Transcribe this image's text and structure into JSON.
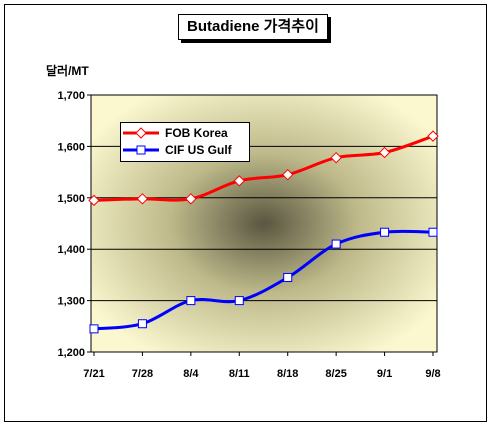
{
  "chart_data": {
    "type": "line",
    "title": "Butadiene 가격추이",
    "ylabel": "달러/MT",
    "xlabel": "",
    "categories": [
      "7/21",
      "7/28",
      "8/4",
      "8/11",
      "8/18",
      "8/25",
      "9/1",
      "9/8"
    ],
    "ylim": [
      1200,
      1700
    ],
    "yticks": [
      "1,200",
      "1,300",
      "1,400",
      "1,500",
      "1,600",
      "1,700"
    ],
    "grid": true,
    "legend_position": "top-left",
    "series": [
      {
        "name": "FOB Korea",
        "color": "#ff0000",
        "marker": "diamond",
        "values": [
          1495,
          1498,
          1498,
          1533,
          1545,
          1578,
          1588,
          1620
        ]
      },
      {
        "name": "CIF US Gulf",
        "color": "#0000ff",
        "marker": "square",
        "values": [
          1245,
          1255,
          1300,
          1300,
          1345,
          1410,
          1433,
          1433
        ]
      }
    ]
  }
}
